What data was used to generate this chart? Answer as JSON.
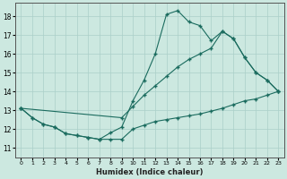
{
  "xlabel": "Humidex (Indice chaleur)",
  "xlim": [
    -0.5,
    23.5
  ],
  "ylim": [
    10.5,
    18.7
  ],
  "xticks": [
    0,
    1,
    2,
    3,
    4,
    5,
    6,
    7,
    8,
    9,
    10,
    11,
    12,
    13,
    14,
    15,
    16,
    17,
    18,
    19,
    20,
    21,
    22,
    23
  ],
  "yticks": [
    11,
    12,
    13,
    14,
    15,
    16,
    17,
    18
  ],
  "bg_color": "#cce8e0",
  "line_color": "#1a6b5e",
  "grid_color": "#aacfc8",
  "line1_x": [
    0,
    1,
    2,
    3,
    4,
    5,
    6,
    7,
    8,
    9,
    10,
    11,
    12,
    13,
    14,
    15,
    16,
    17,
    18,
    19,
    20,
    21,
    22,
    23
  ],
  "line1_y": [
    13.1,
    12.6,
    12.25,
    12.1,
    11.75,
    11.65,
    11.55,
    11.45,
    11.45,
    11.45,
    12.0,
    12.2,
    12.4,
    12.5,
    12.6,
    12.7,
    12.8,
    12.95,
    13.1,
    13.3,
    13.5,
    13.6,
    13.8,
    14.0
  ],
  "line2_x": [
    0,
    1,
    2,
    3,
    4,
    5,
    6,
    7,
    8,
    9,
    10,
    11,
    12,
    13,
    14,
    15,
    16,
    17,
    18,
    19,
    20,
    21,
    22,
    23
  ],
  "line2_y": [
    13.1,
    12.6,
    12.25,
    12.1,
    11.75,
    11.65,
    11.55,
    11.45,
    11.8,
    12.1,
    13.5,
    14.6,
    16.0,
    18.1,
    18.3,
    17.7,
    17.5,
    16.7,
    17.2,
    16.8,
    15.8,
    15.0,
    14.6,
    14.0
  ],
  "line3_x": [
    0,
    9,
    10,
    11,
    12,
    13,
    14,
    15,
    16,
    17,
    18,
    19,
    20,
    21,
    22,
    23
  ],
  "line3_y": [
    13.1,
    12.6,
    13.2,
    13.8,
    14.3,
    14.8,
    15.3,
    15.7,
    16.0,
    16.3,
    17.2,
    16.8,
    15.8,
    15.0,
    14.6,
    14.0
  ]
}
